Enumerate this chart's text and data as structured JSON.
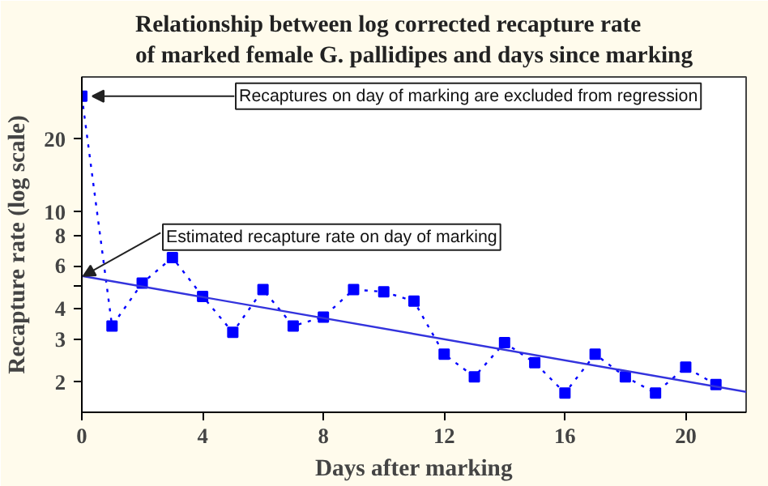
{
  "chart_data": {
    "type": "line",
    "title": "Relationship between log corrected recapture rate\nof marked female G. pallidipes and days since marking",
    "xlabel": "Days after marking",
    "ylabel": "Recapture rate (log scale)",
    "log": "y",
    "xlim": [
      0,
      22
    ],
    "ylim": [
      1.5,
      36
    ],
    "xticks": [
      0,
      4,
      8,
      12,
      16,
      20
    ],
    "yticks": [
      2,
      3,
      4,
      {
        "value": 5,
        "label": null
      },
      6,
      8,
      10,
      20
    ],
    "series": [
      {
        "color": "#0000ff",
        "line_style": "dotted",
        "marker": "square",
        "x": [
          0,
          1,
          2,
          3,
          4,
          5,
          6,
          7,
          8,
          9,
          10,
          11,
          12,
          13,
          14,
          15,
          16,
          17,
          18,
          19,
          20,
          21
        ],
        "values": [
          30,
          3.4,
          5.1,
          6.5,
          4.5,
          3.2,
          4.8,
          3.4,
          3.7,
          4.8,
          4.7,
          4.3,
          2.6,
          2.1,
          2.9,
          2.4,
          1.8,
          2.6,
          2.1,
          1.8,
          2.3,
          1.95
        ]
      },
      {
        "color": "#3333dd",
        "line_style": "solid",
        "marker": "none",
        "x": [
          0,
          22
        ],
        "values": [
          5.46,
          1.82
        ]
      }
    ],
    "annotations": [
      {
        "text": "Recaptures on day of marking are excluded from regression",
        "x": 0,
        "y": 30
      },
      {
        "text": "Estimated recapture rate on day of marking",
        "x": 0,
        "y": 5.46
      }
    ]
  }
}
